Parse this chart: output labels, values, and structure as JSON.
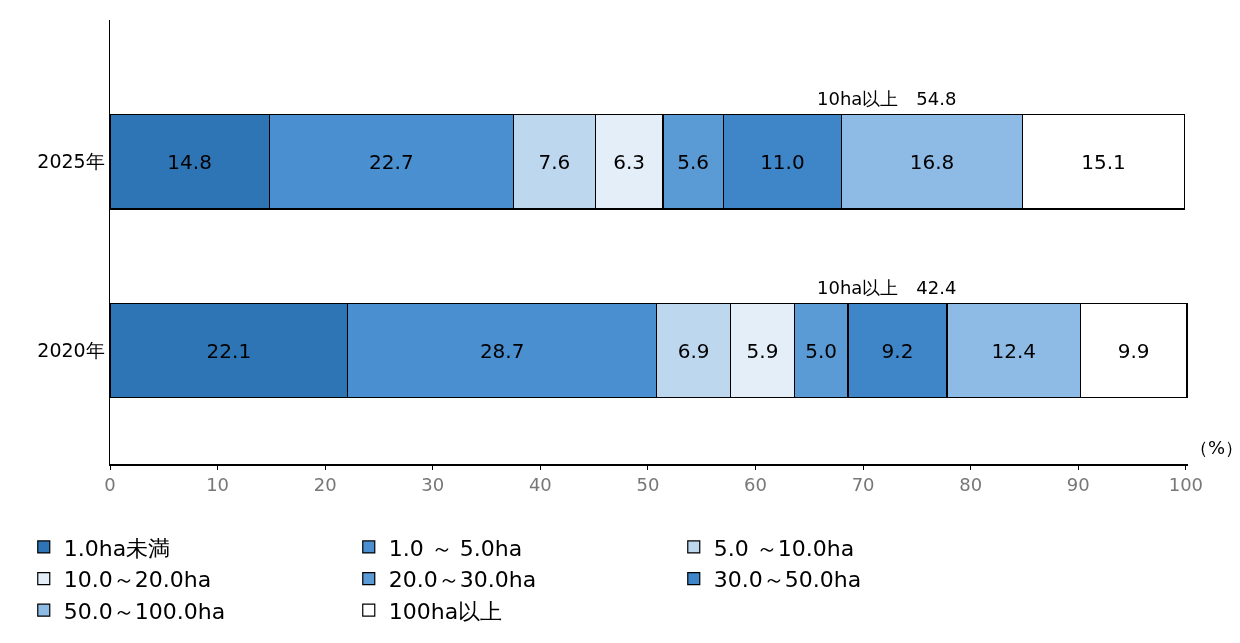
{
  "chart_data": {
    "type": "bar",
    "orientation": "horizontal",
    "stacked": true,
    "categories": [
      "2025年",
      "2020年"
    ],
    "xlabel": "（%）",
    "xlim": [
      0,
      100.2
    ],
    "xticks": [
      0,
      10,
      20,
      30,
      40,
      50,
      60,
      70,
      80,
      90,
      100
    ],
    "grid": false,
    "legend": "bottom",
    "series": [
      {
        "name": "1.0ha未満",
        "color": "#2e75b6",
        "values": [
          14.8,
          22.1
        ],
        "value_labels": [
          "14.8",
          "22.1"
        ]
      },
      {
        "name": "1.0 ～ 5.0ha",
        "color": "#4a8fd0",
        "values": [
          22.7,
          28.7
        ],
        "value_labels": [
          "22.7",
          "28.7"
        ]
      },
      {
        "name": "5.0 ～10.0ha",
        "color": "#bdd7ee",
        "values": [
          7.6,
          6.9
        ],
        "value_labels": [
          "7.6",
          "6.9"
        ]
      },
      {
        "name": "10.0～20.0ha",
        "color": "#e3eef9",
        "values": [
          6.3,
          5.9
        ],
        "value_labels": [
          "6.3",
          "5.9"
        ]
      },
      {
        "name": "20.0～30.0ha",
        "color": "#5b9bd5",
        "values": [
          5.6,
          5.0
        ],
        "value_labels": [
          "5.6",
          "5.0"
        ]
      },
      {
        "name": "30.0～50.0ha",
        "color": "#3f86c8",
        "values": [
          11.0,
          9.2
        ],
        "value_labels": [
          "11.0",
          "9.2"
        ]
      },
      {
        "name": "50.0～100.0ha",
        "color": "#8dbbe6",
        "values": [
          16.8,
          12.4
        ],
        "value_labels": [
          "16.8",
          "12.4"
        ]
      },
      {
        "name": "100ha以上",
        "color": "#ffffff",
        "values": [
          15.1,
          9.9
        ],
        "value_labels": [
          "15.1",
          "9.9"
        ]
      }
    ],
    "annotations": [
      "10ha以上　54.8",
      "10ha以上　42.4"
    ]
  }
}
